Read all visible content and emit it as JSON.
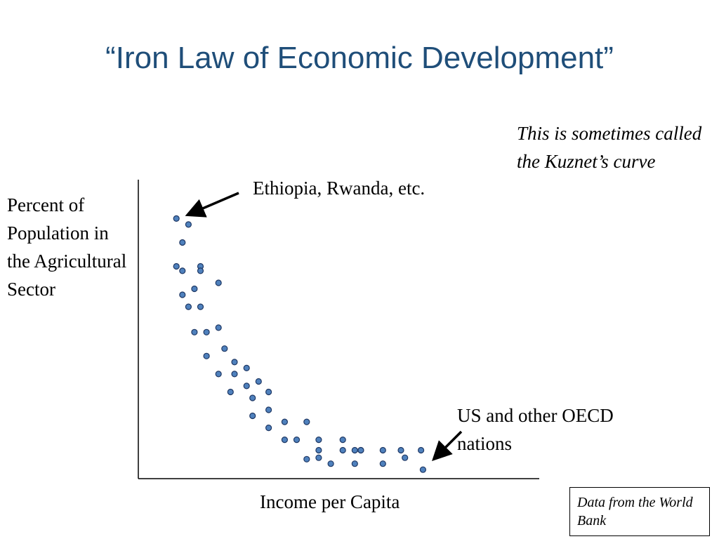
{
  "slide": {
    "title": "“Iron Law of Economic Development”",
    "note": "This is sometimes called the Kuznet’s curve",
    "source": "Data from the World Bank"
  },
  "colors": {
    "title": "#1f4e79",
    "point_fill": "#4f81bd",
    "point_stroke": "#1f3864",
    "axis": "#000000"
  },
  "chart_data": {
    "type": "scatter",
    "title": "",
    "xlabel": "Income per Capita",
    "ylabel": "Percent of Population in the Agricultural Sector",
    "xlim": [
      0,
      100
    ],
    "ylim": [
      0,
      100
    ],
    "grid": false,
    "axis_ticks": false,
    "annotations": [
      {
        "text": "Ethiopia, Rwanda, etc.",
        "points_to": "top-left cluster"
      },
      {
        "text": "US and other OECD nations",
        "points_to": "bottom-right cluster"
      }
    ],
    "series": [
      {
        "x": [
          9.5,
          12.5,
          11,
          9.5,
          11,
          15.5,
          15.5,
          14,
          20,
          11,
          12.5,
          15.5,
          14,
          17,
          20,
          17,
          21.5,
          24,
          20,
          24,
          23,
          27,
          27,
          30,
          28.5,
          32.5,
          28.5,
          32.5,
          32.5,
          36.5,
          36.5,
          39.5,
          42,
          45,
          45,
          42,
          45,
          48,
          51,
          51,
          54,
          54,
          55.5,
          55.5,
          61,
          61,
          65.5,
          66.5,
          70.5,
          71
        ],
        "y": [
          87,
          85,
          79,
          71,
          69.5,
          71,
          69.5,
          63.5,
          65.5,
          61.5,
          57.5,
          57.5,
          49,
          49,
          50.5,
          41,
          43.5,
          39,
          35,
          35,
          29,
          37,
          31,
          32.5,
          27,
          29,
          21,
          23,
          17,
          19,
          13,
          13,
          19,
          13,
          7,
          6.5,
          9.5,
          5,
          9.5,
          13,
          9.5,
          5,
          9.5,
          9.5,
          9.5,
          5,
          9.5,
          7,
          9.5,
          3
        ]
      }
    ]
  }
}
